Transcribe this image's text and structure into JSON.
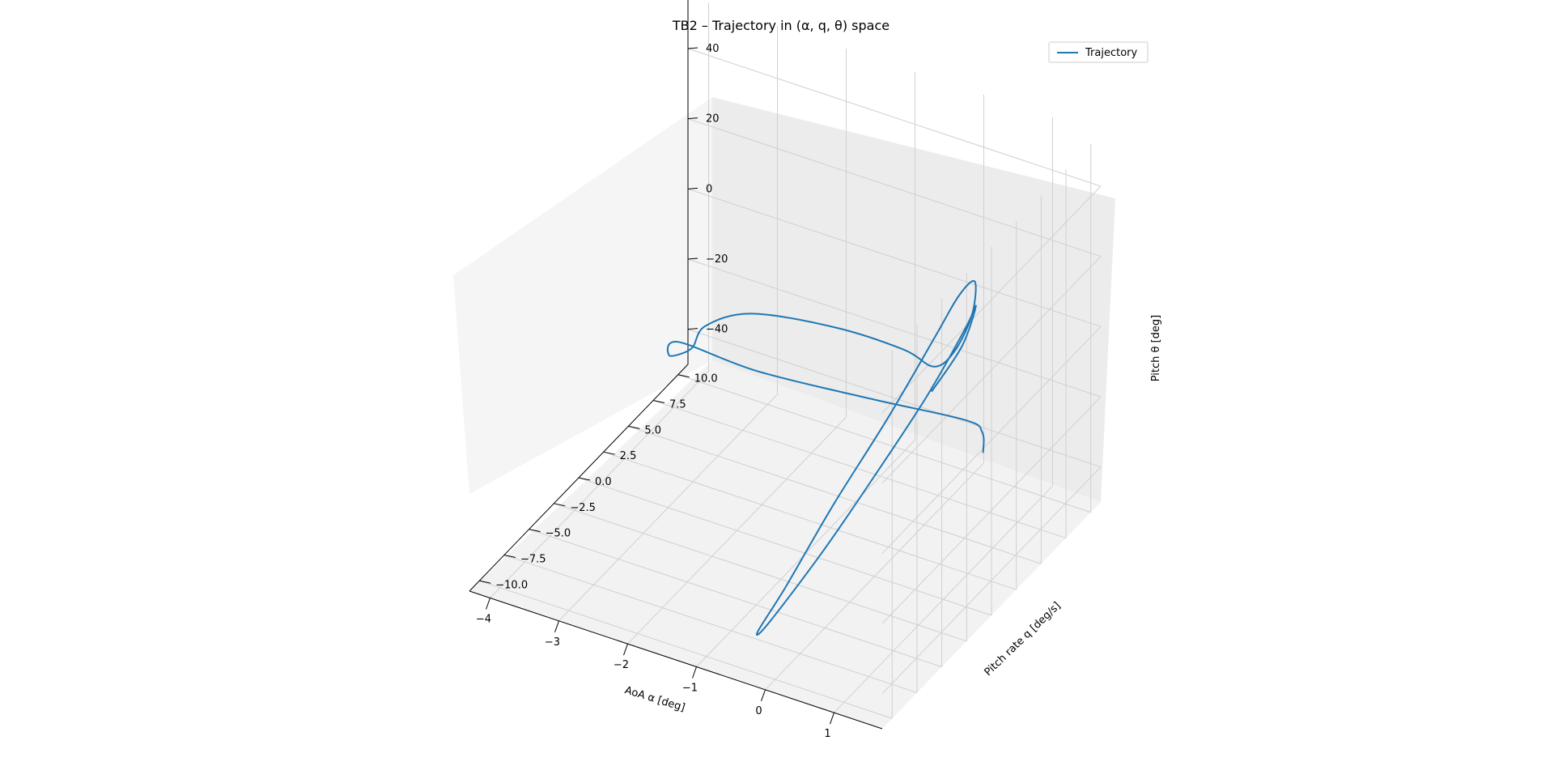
{
  "chart_data": {
    "type": "line3d",
    "title": "TB2 – Trajectory in (α, q, θ) space",
    "xlabel": "AoA α [deg]",
    "ylabel": "Pitch rate q [deg/s]",
    "zlabel": "Pitch θ [deg]",
    "xlim": [
      -4.3,
      1.7
    ],
    "ylim": [
      -11,
      11
    ],
    "zlim": [
      -50,
      55
    ],
    "xticks": [
      -4,
      -3,
      -2,
      -1,
      0,
      1
    ],
    "xtick_labels": [
      "−4",
      "−3",
      "−2",
      "−1",
      "0",
      "1"
    ],
    "yticks": [
      -10,
      -7.5,
      -5,
      -2.5,
      0,
      2.5,
      5,
      7.5,
      10
    ],
    "ytick_labels": [
      "−10.0",
      "−7.5",
      "−5.0",
      "−2.5",
      "0.0",
      "2.5",
      "5.0",
      "7.5",
      "10.0"
    ],
    "zticks": [
      -40,
      -20,
      0,
      20,
      40
    ],
    "ztick_labels": [
      "−40",
      "−20",
      "0",
      "20",
      "40"
    ],
    "grid": true,
    "legend_position": "top-right",
    "series": [
      {
        "name": "Trajectory",
        "color": "#1f77b4",
        "points": [
          {
            "x": 1.0,
            "y": 4.0,
            "z": -20
          },
          {
            "x": 0.7,
            "y": 6.0,
            "z": -22
          },
          {
            "x": 0.3,
            "y": 7.0,
            "z": -24
          },
          {
            "x": -1.0,
            "y": 6.5,
            "z": -25
          },
          {
            "x": -2.5,
            "y": 5.5,
            "z": -24
          },
          {
            "x": -3.6,
            "y": 5.2,
            "z": -22
          },
          {
            "x": -3.7,
            "y": 5.0,
            "z": -26
          },
          {
            "x": -3.5,
            "y": 5.8,
            "z": -25
          },
          {
            "x": -3.4,
            "y": 6.5,
            "z": -20
          },
          {
            "x": -2.8,
            "y": 7.0,
            "z": -14
          },
          {
            "x": -1.5,
            "y": 6.5,
            "z": -8
          },
          {
            "x": -0.3,
            "y": 5.0,
            "z": -2
          },
          {
            "x": 0.4,
            "y": 3.2,
            "z": 3
          },
          {
            "x": 0.8,
            "y": 2.5,
            "z": 12
          },
          {
            "x": 1.2,
            "y": 1.5,
            "z": 28
          },
          {
            "x": 1.4,
            "y": 0.4,
            "z": 42
          },
          {
            "x": 1.3,
            "y": -0.5,
            "z": 40
          },
          {
            "x": 1.1,
            "y": -1.5,
            "z": 30
          },
          {
            "x": 0.7,
            "y": -3.5,
            "z": 10
          },
          {
            "x": 0.2,
            "y": -5.5,
            "z": -12
          },
          {
            "x": -0.2,
            "y": -7.5,
            "z": -32
          },
          {
            "x": -0.4,
            "y": -9.0,
            "z": -42
          },
          {
            "x": -0.3,
            "y": -8.5,
            "z": -40
          },
          {
            "x": 0.1,
            "y": -6.0,
            "z": -25
          },
          {
            "x": 0.5,
            "y": -3.5,
            "z": -8
          },
          {
            "x": 0.9,
            "y": -1.0,
            "z": 10
          },
          {
            "x": 1.2,
            "y": 0.8,
            "z": 26
          },
          {
            "x": 1.3,
            "y": 1.2,
            "z": 32
          },
          {
            "x": 1.2,
            "y": 0.5,
            "z": 22
          },
          {
            "x": 0.9,
            "y": -0.5,
            "z": 10
          }
        ]
      }
    ]
  }
}
